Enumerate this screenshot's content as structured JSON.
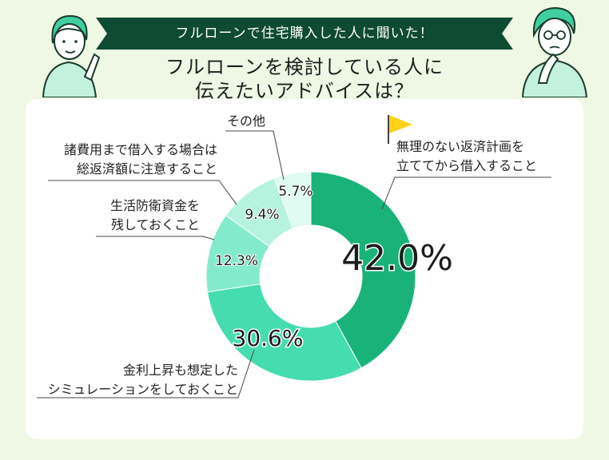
{
  "banner": {
    "text": "フルローンで住宅購入した人に聞いた！"
  },
  "headline": {
    "line1": "フルローンを検討している人に",
    "line2": "伝えたいアドバイスは？"
  },
  "colors": {
    "banner_bg": "#0f4a33",
    "background": "#eef8e4",
    "flag": "#ffd21a",
    "line": "#444444"
  },
  "chart_data": {
    "type": "pie",
    "donut": true,
    "slices": [
      {
        "label_lines": [
          "無理のない返済計画を",
          "立ててから借入すること"
        ],
        "value": 42.0,
        "value_text": "42.0%",
        "color": "#19b37a"
      },
      {
        "label_lines": [
          "金利上昇も想定した",
          "シミュレーションをしておくこと"
        ],
        "value": 30.6,
        "value_text": "30.6%",
        "color": "#45ddb0"
      },
      {
        "label_lines": [
          "生活防衛資金を",
          "残しておくこと"
        ],
        "value": 12.3,
        "value_text": "12.3%",
        "color": "#83ebcc"
      },
      {
        "label_lines": [
          "諸費用まで借入する場合は",
          "総返済額に注意すること"
        ],
        "value": 9.4,
        "value_text": "9.4%",
        "color": "#b6f3df"
      },
      {
        "label_lines": [
          "その他"
        ],
        "value": 5.7,
        "value_text": "5.7%",
        "color": "#e0fbf1"
      }
    ]
  }
}
